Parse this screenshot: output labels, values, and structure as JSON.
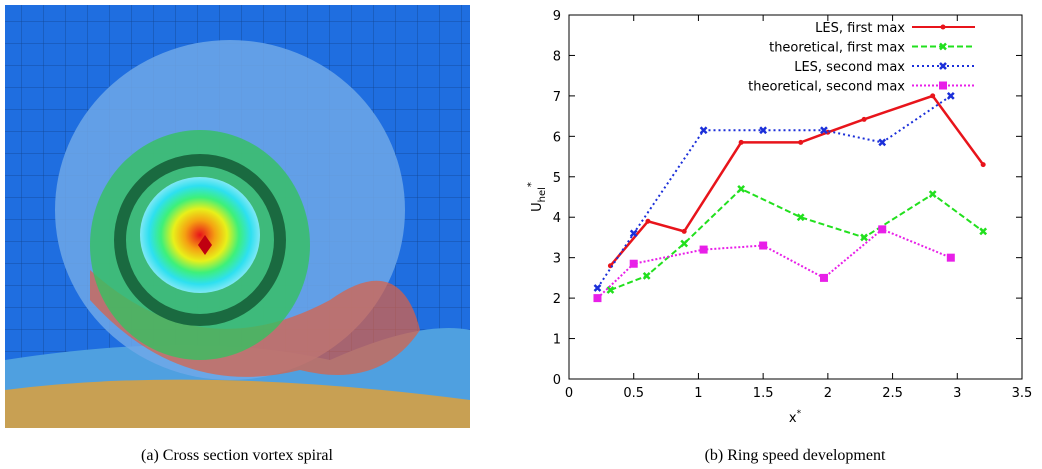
{
  "figure": {
    "captions": [
      "(a) Cross section vortex spiral",
      "(b) Ring speed development"
    ]
  },
  "chart_data": {
    "type": "line",
    "xlabel": {
      "base": "x",
      "sup": "*"
    },
    "ylabel": {
      "base": "U",
      "sub": "hel",
      "sup": "*"
    },
    "xlim": [
      0,
      3.5
    ],
    "xticks": [
      0,
      0.5,
      1,
      1.5,
      2,
      2.5,
      3,
      3.5
    ],
    "ylim": [
      0,
      9
    ],
    "yticks": [
      0,
      1,
      2,
      3,
      4,
      5,
      6,
      7,
      8,
      9
    ],
    "legend": "upper right",
    "series": [
      {
        "name": "LES, first max",
        "color": "#e8141b",
        "dash": "none",
        "marker": "dot",
        "x": [
          0.32,
          0.61,
          0.89,
          1.33,
          1.79,
          2.0,
          2.28,
          2.81,
          3.2
        ],
        "values": [
          2.8,
          3.9,
          3.65,
          5.85,
          5.85,
          6.1,
          6.42,
          7.0,
          5.3
        ]
      },
      {
        "name": "theoretical, first max",
        "color": "#22e01e",
        "dash": "6,3",
        "marker": "cross",
        "x": [
          0.32,
          0.6,
          0.89,
          1.33,
          1.79,
          2.28,
          2.81,
          3.2
        ],
        "values": [
          2.2,
          2.55,
          3.35,
          4.7,
          4.0,
          3.5,
          4.57,
          3.65
        ]
      },
      {
        "name": "LES, second max",
        "color": "#1b2fd9",
        "dash": "2,3",
        "marker": "cross",
        "x": [
          0.22,
          0.5,
          1.04,
          1.5,
          1.97,
          2.42,
          2.95
        ],
        "values": [
          2.25,
          3.6,
          6.15,
          6.15,
          6.15,
          5.85,
          7.0
        ]
      },
      {
        "name": "theoretical, second max",
        "color": "#e81fe8",
        "dash": "2,2",
        "marker": "square",
        "x": [
          0.22,
          0.5,
          1.04,
          1.5,
          1.97,
          2.42,
          2.95
        ],
        "values": [
          2.0,
          2.85,
          3.2,
          3.3,
          2.5,
          3.7,
          3.0
        ]
      }
    ]
  }
}
